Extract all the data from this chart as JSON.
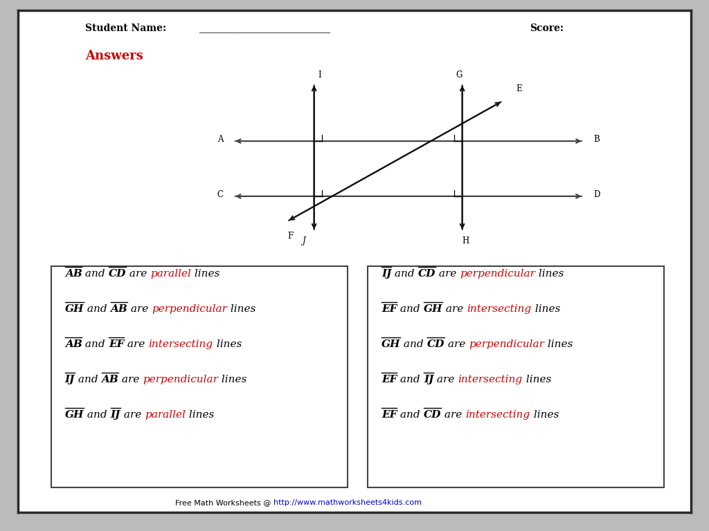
{
  "student_name_label": "Student Name:",
  "score_label": "Score:",
  "answers_label": "Answers",
  "answers_color": "#cc0000",
  "bg_color": "#ffffff",
  "border_color": "#2a2a2a",
  "diagram_line_color": "#444444",
  "left_box": [
    [
      "AB",
      " and ",
      "CD",
      " are ",
      "parallel",
      " lines"
    ],
    [
      "GH",
      " and ",
      "AB",
      " are ",
      "perpendicular",
      " lines"
    ],
    [
      "AB",
      " and ",
      "EF",
      " are ",
      "intersecting",
      " lines"
    ],
    [
      "IJ",
      " and ",
      "AB",
      " are ",
      "perpendicular",
      " lines"
    ],
    [
      "GH",
      " and ",
      "IJ",
      " are ",
      "parallel",
      " lines"
    ]
  ],
  "right_box": [
    [
      "IJ",
      " and ",
      "CD",
      " are ",
      "perpendicular",
      " lines"
    ],
    [
      "EF",
      " and ",
      "GH",
      " are ",
      "intersecting",
      " lines"
    ],
    [
      "GH",
      " and ",
      "CD",
      " are ",
      "perpendicular",
      " lines"
    ],
    [
      "EF",
      " and ",
      "IJ",
      " are ",
      "intersecting",
      " lines"
    ],
    [
      "EF",
      " and ",
      "CD",
      " are ",
      "intersecting",
      " lines"
    ]
  ],
  "keyword_colors": {
    "parallel": "#cc0000",
    "perpendicular": "#cc0000",
    "intersecting": "#cc0000"
  },
  "footer_plain": "Free Math Worksheets @ ",
  "footer_url": "http://www.mathworksheets4kids.com"
}
